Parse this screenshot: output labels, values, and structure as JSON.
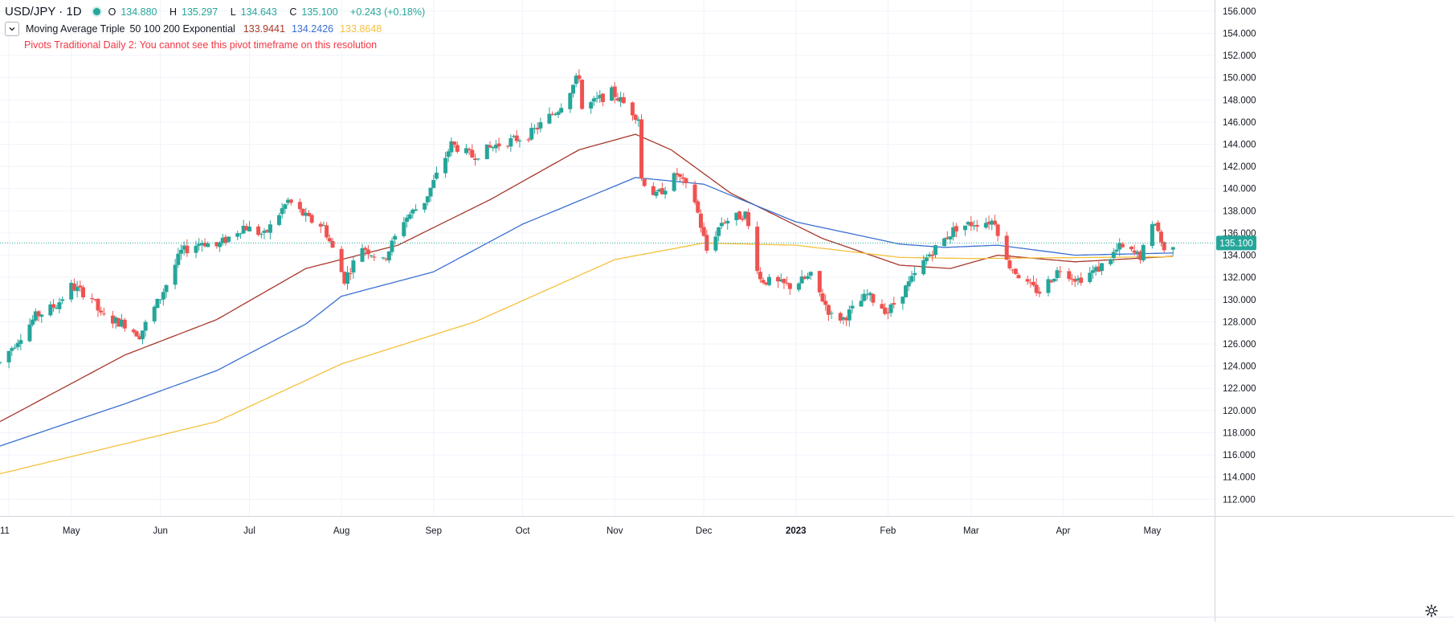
{
  "legend": {
    "symbol": "USD/JPY · 1D",
    "open_label": "O",
    "open": "134.880",
    "high_label": "H",
    "high": "135.297",
    "low_label": "L",
    "low": "134.643",
    "close_label": "C",
    "close": "135.100",
    "change": "+0.243 (+0.18%)",
    "indicator_name": "Moving Average Triple",
    "indicator_params": "50 100 200 Exponential",
    "ma1_value": "133.9441",
    "ma2_value": "134.2426",
    "ma3_value": "133.8648",
    "pivot_warning": "Pivots Traditional Daily 2: You cannot see this pivot timeframe on this resolution"
  },
  "colors": {
    "up": "#26a69a",
    "down": "#ef5350",
    "ma1": "#a8372a",
    "ma2": "#3a6fd1",
    "ma3": "#f5c13c",
    "last_price_bg": "#26a69a",
    "last_line": "#26a69a",
    "grid": "#f0f3fa",
    "axis_text": "#131722"
  },
  "chart_data": {
    "type": "candlestick",
    "title": "USD/JPY · 1D",
    "ylim": [
      110.5,
      157
    ],
    "y_ticks": [
      "156.000",
      "154.000",
      "152.000",
      "150.000",
      "148.000",
      "146.000",
      "144.000",
      "142.000",
      "140.000",
      "138.000",
      "136.000",
      "134.000",
      "132.000",
      "130.000",
      "128.000",
      "126.000",
      "124.000",
      "122.000",
      "120.000",
      "118.000",
      "116.000",
      "114.000",
      "112.000"
    ],
    "x_ticks": [
      "11",
      "May",
      "Jun",
      "Jul",
      "Aug",
      "Sep",
      "Oct",
      "Nov",
      "Dec",
      "2023",
      "Feb",
      "Mar",
      "Apr",
      "May"
    ],
    "x_range": [
      "2022-04-08",
      "2023-05-22"
    ],
    "last_price": "135.100",
    "grid": true,
    "series": [
      {
        "name": "EMA 50",
        "anchors": [
          [
            "2022-04-08",
            119
          ],
          [
            "2022-05-20",
            125
          ],
          [
            "2022-06-20",
            128.2
          ],
          [
            "2022-07-20",
            132.8
          ],
          [
            "2022-08-20",
            134.9
          ],
          [
            "2022-09-20",
            139
          ],
          [
            "2022-10-20",
            143.5
          ],
          [
            "2022-11-08",
            144.9
          ],
          [
            "2022-11-20",
            143.5
          ],
          [
            "2022-12-10",
            139.6
          ],
          [
            "2023-01-10",
            135.5
          ],
          [
            "2023-02-05",
            133.1
          ],
          [
            "2023-02-22",
            132.8
          ],
          [
            "2023-03-10",
            134.0
          ],
          [
            "2023-04-05",
            133.4
          ],
          [
            "2023-05-08",
            133.9
          ]
        ]
      },
      {
        "name": "EMA 100",
        "anchors": [
          [
            "2022-04-08",
            116.8
          ],
          [
            "2022-05-20",
            120.6
          ],
          [
            "2022-06-20",
            123.6
          ],
          [
            "2022-07-20",
            127.8
          ],
          [
            "2022-08-01",
            130.3
          ],
          [
            "2022-09-01",
            132.5
          ],
          [
            "2022-10-01",
            136.8
          ],
          [
            "2022-11-08",
            141.0
          ],
          [
            "2022-12-01",
            140.4
          ],
          [
            "2023-01-01",
            137.0
          ],
          [
            "2023-02-05",
            135.0
          ],
          [
            "2023-02-20",
            134.7
          ],
          [
            "2023-03-10",
            134.9
          ],
          [
            "2023-04-05",
            134.0
          ],
          [
            "2023-05-08",
            134.2
          ]
        ]
      },
      {
        "name": "EMA 200",
        "anchors": [
          [
            "2022-04-08",
            114.3
          ],
          [
            "2022-05-20",
            117.0
          ],
          [
            "2022-06-20",
            119.0
          ],
          [
            "2022-08-01",
            124.2
          ],
          [
            "2022-09-15",
            128.0
          ],
          [
            "2022-11-01",
            133.6
          ],
          [
            "2022-12-01",
            135.1
          ],
          [
            "2023-01-01",
            134.9
          ],
          [
            "2023-02-05",
            133.8
          ],
          [
            "2023-03-01",
            133.7
          ],
          [
            "2023-05-08",
            133.86
          ]
        ]
      }
    ],
    "candle_anchors": [
      [
        "2022-04-08",
        124.3
      ],
      [
        "2022-04-20",
        128.5
      ],
      [
        "2022-04-27",
        129.5
      ],
      [
        "2022-05-02",
        131.2
      ],
      [
        "2022-05-09",
        130.2
      ],
      [
        "2022-05-12",
        128.5
      ],
      [
        "2022-05-20",
        127.8
      ],
      [
        "2022-05-25",
        126.8
      ],
      [
        "2022-06-01",
        130.2
      ],
      [
        "2022-06-08",
        134.3
      ],
      [
        "2022-06-15",
        135.2
      ],
      [
        "2022-06-20",
        134.8
      ],
      [
        "2022-06-29",
        136.6
      ],
      [
        "2022-07-06",
        135.8
      ],
      [
        "2022-07-14",
        138.9
      ],
      [
        "2022-07-21",
        137.2
      ],
      [
        "2022-07-26",
        136.6
      ],
      [
        "2022-08-02",
        131.8
      ],
      [
        "2022-08-08",
        134.8
      ],
      [
        "2022-08-15",
        133.4
      ],
      [
        "2022-08-22",
        137.2
      ],
      [
        "2022-08-29",
        138.9
      ],
      [
        "2022-09-07",
        144.0
      ],
      [
        "2022-09-14",
        142.9
      ],
      [
        "2022-09-22",
        143.9
      ],
      [
        "2022-10-03",
        144.8
      ],
      [
        "2022-10-13",
        147.2
      ],
      [
        "2022-10-20",
        150.2
      ],
      [
        "2022-10-21",
        147.2
      ],
      [
        "2022-10-31",
        148.7
      ],
      [
        "2022-11-09",
        146.4
      ],
      [
        "2022-11-10",
        140.9
      ],
      [
        "2022-11-15",
        139.3
      ],
      [
        "2022-11-22",
        141.3
      ],
      [
        "2022-11-28",
        138.9
      ],
      [
        "2022-12-02",
        134.4
      ],
      [
        "2022-12-07",
        137.0
      ],
      [
        "2022-12-15",
        137.7
      ],
      [
        "2022-12-20",
        131.8
      ],
      [
        "2022-12-30",
        131.2
      ],
      [
        "2023-01-06",
        132.1
      ],
      [
        "2023-01-13",
        128.5
      ],
      [
        "2023-01-17",
        128.3
      ],
      [
        "2023-01-25",
        130.4
      ],
      [
        "2023-02-01",
        128.9
      ],
      [
        "2023-02-08",
        131.4
      ],
      [
        "2023-02-15",
        134.1
      ],
      [
        "2023-02-24",
        136.5
      ],
      [
        "2023-03-02",
        136.9
      ],
      [
        "2023-03-09",
        137.1
      ],
      [
        "2023-03-13",
        133.4
      ],
      [
        "2023-03-20",
        131.3
      ],
      [
        "2023-03-24",
        130.7
      ],
      [
        "2023-03-31",
        132.8
      ],
      [
        "2023-04-06",
        131.8
      ],
      [
        "2023-04-13",
        132.8
      ],
      [
        "2023-04-20",
        134.7
      ],
      [
        "2023-04-27",
        133.9
      ],
      [
        "2023-05-02",
        137.1
      ],
      [
        "2023-05-05",
        134.3
      ],
      [
        "2023-05-08",
        135.1
      ]
    ]
  }
}
